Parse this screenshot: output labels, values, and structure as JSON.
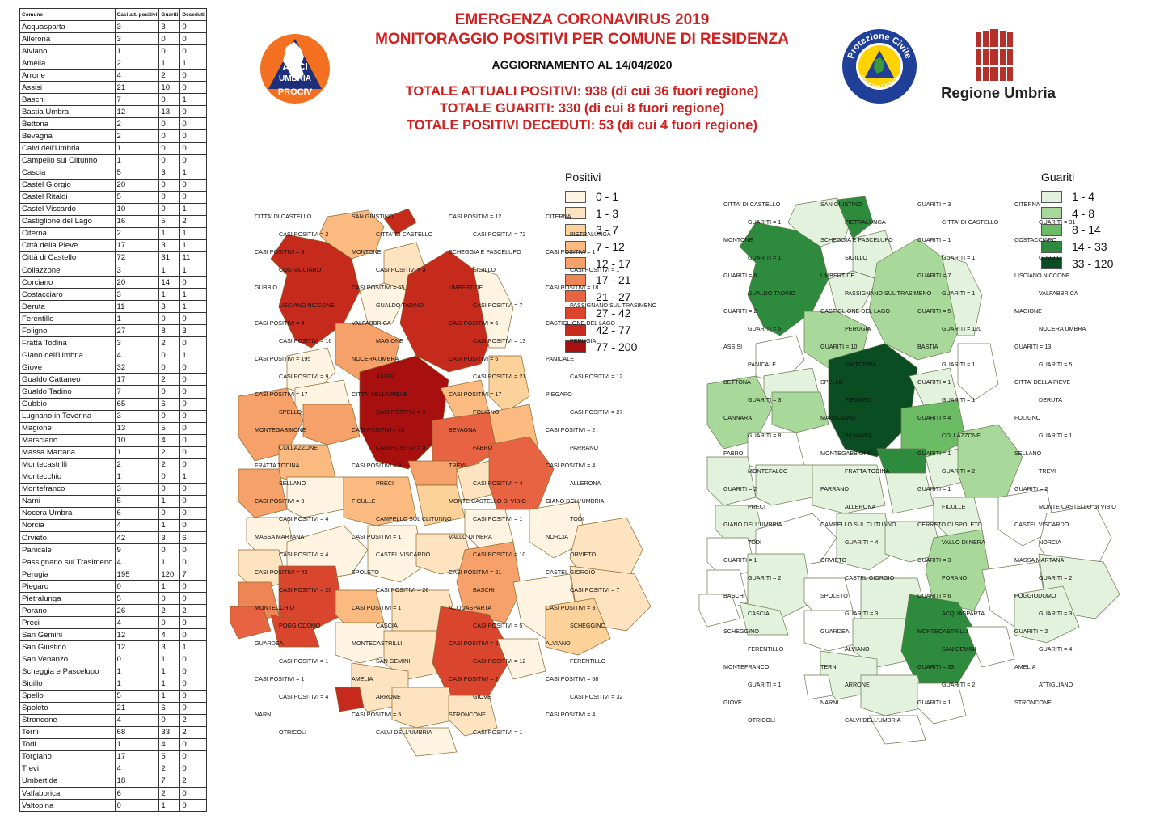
{
  "header": {
    "title_line1": "EMERGENZA CORONAVIRUS 2019",
    "title_line2": "MONITORAGGIO POSITIVI PER COMUNE DI RESIDENZA",
    "update": "AGGIORNAMENTO AL 14/04/2020",
    "total_positives": "TOTALE ATTUALI POSITIVI: 938 (di cui 36 fuori regione)",
    "total_recovered": "TOTALE GUARITI: 330 (di cui 8 fuori regione)",
    "total_deceased": "TOTALE POSITIVI DECEDUTI: 53 (di cui 4 fuori regione)"
  },
  "logos": {
    "anci_line1": "ANCI",
    "anci_line2": "UMBRIA",
    "anci_line3": "PROCIV",
    "pc_top": "Protezione Civile",
    "pc_bottom": "Regione Umbria",
    "regione": "Regione Umbria"
  },
  "table": {
    "headers": [
      "Comune",
      "Casi att. positivi",
      "Guariti",
      "Deceduti"
    ],
    "rows": [
      [
        "Acquasparta",
        "3",
        "3",
        "0"
      ],
      [
        "Allerona",
        "3",
        "0",
        "0"
      ],
      [
        "Alviano",
        "1",
        "0",
        "0"
      ],
      [
        "Amelia",
        "2",
        "1",
        "1"
      ],
      [
        "Arrone",
        "4",
        "2",
        "0"
      ],
      [
        "Assisi",
        "21",
        "10",
        "0"
      ],
      [
        "Baschi",
        "7",
        "0",
        "1"
      ],
      [
        "Bastia Umbra",
        "12",
        "13",
        "0"
      ],
      [
        "Bettona",
        "2",
        "0",
        "0"
      ],
      [
        "Bevagna",
        "2",
        "0",
        "0"
      ],
      [
        "Calvi dell'Umbria",
        "1",
        "0",
        "0"
      ],
      [
        "Campello sul Clitunno",
        "1",
        "0",
        "0"
      ],
      [
        "Cascia",
        "5",
        "3",
        "1"
      ],
      [
        "Castel Giorgio",
        "20",
        "0",
        "0"
      ],
      [
        "Castel Ritaldi",
        "5",
        "0",
        "0"
      ],
      [
        "Castel Viscardo",
        "10",
        "0",
        "1"
      ],
      [
        "Castiglione del Lago",
        "16",
        "5",
        "2"
      ],
      [
        "Citerna",
        "2",
        "1",
        "1"
      ],
      [
        "Città  della Pieve",
        "17",
        "3",
        "1"
      ],
      [
        "Città  di Castello",
        "72",
        "31",
        "11"
      ],
      [
        "Collazzone",
        "3",
        "1",
        "1"
      ],
      [
        "Corciano",
        "20",
        "14",
        "0"
      ],
      [
        "Costacciaro",
        "3",
        "1",
        "1"
      ],
      [
        "Deruta",
        "11",
        "3",
        "1"
      ],
      [
        "Ferentillo",
        "1",
        "0",
        "0"
      ],
      [
        "Foligno",
        "27",
        "8",
        "3"
      ],
      [
        "Fratta Todina",
        "3",
        "2",
        "0"
      ],
      [
        "Giano dell'Umbria",
        "4",
        "0",
        "1"
      ],
      [
        "Giove",
        "32",
        "0",
        "0"
      ],
      [
        "Gualdo Cattaneo",
        "17",
        "2",
        "0"
      ],
      [
        "Gualdo Tadino",
        "7",
        "0",
        "0"
      ],
      [
        "Gubbio",
        "65",
        "6",
        "0"
      ],
      [
        "Lugnano in Teverina",
        "3",
        "0",
        "0"
      ],
      [
        "Magione",
        "13",
        "5",
        "0"
      ],
      [
        "Marsciano",
        "10",
        "4",
        "0"
      ],
      [
        "Massa Martana",
        "1",
        "2",
        "0"
      ],
      [
        "Montecastrilli",
        "2",
        "2",
        "0"
      ],
      [
        "Montecchio",
        "1",
        "0",
        "1"
      ],
      [
        "Montefranco",
        "3",
        "0",
        "0"
      ],
      [
        "Narni",
        "5",
        "1",
        "0"
      ],
      [
        "Nocera Umbra",
        "6",
        "0",
        "0"
      ],
      [
        "Norcia",
        "4",
        "1",
        "0"
      ],
      [
        "Orvieto",
        "42",
        "3",
        "6"
      ],
      [
        "Panicale",
        "9",
        "0",
        "0"
      ],
      [
        "Passignano sul Trasimeno",
        "4",
        "1",
        "0"
      ],
      [
        "Perugia",
        "195",
        "120",
        "7"
      ],
      [
        "Piegaro",
        "0",
        "1",
        "0"
      ],
      [
        "Pietralunga",
        "5",
        "0",
        "0"
      ],
      [
        "Porano",
        "26",
        "2",
        "2"
      ],
      [
        "Preci",
        "4",
        "0",
        "0"
      ],
      [
        "San Gemini",
        "12",
        "4",
        "0"
      ],
      [
        "San Giustino",
        "12",
        "3",
        "1"
      ],
      [
        "San Venanzo",
        "0",
        "1",
        "0"
      ],
      [
        "Scheggia e Pascelupo",
        "1",
        "1",
        "0"
      ],
      [
        "Sigillo",
        "1",
        "1",
        "0"
      ],
      [
        "Spello",
        "5",
        "1",
        "0"
      ],
      [
        "Spoleto",
        "21",
        "6",
        "0"
      ],
      [
        "Stroncone",
        "4",
        "0",
        "2"
      ],
      [
        "Terni",
        "68",
        "33",
        "2"
      ],
      [
        "Todi",
        "1",
        "4",
        "0"
      ],
      [
        "Torgiano",
        "17",
        "5",
        "0"
      ],
      [
        "Trevi",
        "4",
        "2",
        "0"
      ],
      [
        "Umbertide",
        "18",
        "7",
        "2"
      ],
      [
        "Valfabbrica",
        "6",
        "2",
        "0"
      ],
      [
        "Valtopina",
        "0",
        "1",
        "0"
      ]
    ]
  },
  "legend_positivi": {
    "title": "Positivi",
    "items": [
      {
        "label": "0 - 1",
        "color": "#fff3e2"
      },
      {
        "label": "1 - 3",
        "color": "#fde3c0"
      },
      {
        "label": "3 - 7",
        "color": "#fdd19a"
      },
      {
        "label": "7 - 12",
        "color": "#fbbb80"
      },
      {
        "label": "12 - 17",
        "color": "#f5a169"
      },
      {
        "label": "17 - 21",
        "color": "#ef8454"
      },
      {
        "label": "21 - 27",
        "color": "#e76342"
      },
      {
        "label": "27 - 42",
        "color": "#d9452d"
      },
      {
        "label": "42 - 77",
        "color": "#c52a1c"
      },
      {
        "label": "77 - 200",
        "color": "#a80f0f"
      }
    ]
  },
  "legend_guariti": {
    "title": "Guariti",
    "items": [
      {
        "label": "1 - 4",
        "color": "#e2f2dc"
      },
      {
        "label": "4 - 8",
        "color": "#a8d99a"
      },
      {
        "label": "8 - 14",
        "color": "#6cbc66"
      },
      {
        "label": "14 - 33",
        "color": "#2e8b3e"
      },
      {
        "label": "33 - 120",
        "color": "#0b4d22"
      }
    ]
  },
  "map_positivi_labels": [
    "CITTA' DI CASTELLO",
    "SAN GIUSTINO",
    "CASI POSITIVI = 12",
    "CITERNA",
    "CASI POSITIVI = 2",
    "CITTA' DI CASTELLO",
    "CASI POSITIVI = 72",
    "PIETRALUNGA",
    "CASI POSITIVI = 5",
    "MONTONE",
    "SCHEGGIA E PASCELUPO",
    "CASI POSITIVI = 1",
    "COSTACCIARO",
    "CASI POSITIVI = 3",
    "SIGILLO",
    "CASI POSITIVI = 1",
    "GUBBIO",
    "CASI POSITIVI = 65",
    "UMBERTIDE",
    "CASI POSITIVI = 18",
    "LISCIANO NICCONE",
    "GUALDO TADINO",
    "CASI POSITIVI = 7",
    "PASSIGNANO SUL TRASIMENO",
    "CASI POSITIVI = 4",
    "VALFABBRICA",
    "CASI POSITIVI = 6",
    "CASTIGLIONE DEL LAGO",
    "CASI POSITIVI = 16",
    "MAGIONE",
    "CASI POSITIVI = 13",
    "PERUGIA",
    "CASI POSITIVI = 195",
    "NOCERA UMBRA",
    "CASI POSITIVI = 6",
    "PANICALE",
    "CASI POSITIVI = 9",
    "ASSISI",
    "CASI POSITIVI = 21",
    "CASI POSITIVI = 12",
    "CASI POSITIVI = 17",
    "CITTA' DELLA PIEVE",
    "CASI POSITIVI = 17",
    "PIEGARO",
    "SPELLO",
    "CASI POSITIVI = 5",
    "FOLIGNO",
    "CASI POSITIVI = 27",
    "MONTEGABBIONE",
    "CASI POSITIVI = 10",
    "BEVAGNA",
    "CASI POSITIVI = 2",
    "COLLAZZONE",
    "CASI POSITIVI = 3",
    "FABRO",
    "PARRANO",
    "FRATTA TODINA",
    "CASI POSITIVI = 3",
    "TREVI",
    "CASI POSITIVI = 4",
    "SELLANO",
    "PRECI",
    "CASI POSITIVI = 4",
    "ALLERONA",
    "CASI POSITIVI = 3",
    "FICULLE",
    "MONTE CASTELLO DI VIBIO",
    "GIANO DELL'UMBRIA",
    "CASI POSITIVI = 4",
    "CAMPELLO SUL CLITUNNO",
    "CASI POSITIVI = 1",
    "TODI",
    "MASSA MARTANA",
    "CASI POSITIVI = 1",
    "VALLO DI NERA",
    "NORCIA",
    "CASI POSITIVI = 4",
    "CASTEL VISCARDO",
    "CASI POSITIVI = 10",
    "ORVIETO",
    "CASI POSITIVI = 42",
    "SPOLETO",
    "CASI POSITIVI = 21",
    "CASTEL GIORGIO",
    "CASI POSITIVI = 20",
    "CASI POSITIVI = 26",
    "BASCHI",
    "CASI POSITIVI = 7",
    "MONTECCHIO",
    "CASI POSITIVI = 1",
    "ACQUASPARTA",
    "CASI POSITIVI = 3",
    "POGGIODOMO",
    "CASCIA",
    "CASI POSITIVI = 5",
    "SCHEGGINO",
    "GUARDEA",
    "MONTECASTRILLI",
    "CASI POSITIVI = 2",
    "ALVIANO",
    "CASI POSITIVI = 1",
    "SAN GEMINI",
    "CASI POSITIVI = 12",
    "FERENTILLO",
    "CASI POSITIVI = 1",
    "AMELIA",
    "CASI POSITIVI = 2",
    "CASI POSITIVI = 68",
    "CASI POSITIVI = 4",
    "ARRONE",
    "GIOVE",
    "CASI POSITIVI = 32",
    "NARNI",
    "CASI POSITIVI = 5",
    "STRONCONE",
    "CASI POSITIVI = 4",
    "OTRICOLI",
    "CALVI DELL'UMBRIA",
    "CASI POSITIVI = 1"
  ],
  "map_guariti_labels": [
    "CITTA' DI CASTELLO",
    "SAN GIUSTINO",
    "GUARITI = 3",
    "CITERNA",
    "GUARITI = 1",
    "PIETRALUNGA",
    "CITTA' DI CASTELLO",
    "GUARITI = 31",
    "MONTONE",
    "SCHEGGIA E PASCELUPO",
    "GUARITI = 1",
    "COSTACCIARO",
    "GUARITI = 1",
    "SIGILLO",
    "GUARITI = 1",
    "GUBBIO",
    "GUARITI = 6",
    "UMBERTIDE",
    "GUARITI = 7",
    "LISCIANO NICCONE",
    "GUALDO TADINO",
    "PASSIGNANO SUL TRASIMENO",
    "GUARITI = 1",
    "VALFABBRICA",
    "GUARITI = 2",
    "CASTIGLIONE DEL LAGO",
    "GUARITI = 5",
    "MAGIONE",
    "GUARITI = 5",
    "PERUGIA",
    "GUARITI = 120",
    "NOCERA UMBRA",
    "ASSISI",
    "GUARITI = 10",
    "BASTIA",
    "GUARITI = 13",
    "PANICALE",
    "VALTOPINA",
    "GUARITI = 1",
    "GUARITI = 5",
    "BETTONA",
    "SPELLO",
    "GUARITI = 1",
    "CITTA' DELLA PIEVE",
    "GUARITI = 3",
    "PIEGARO",
    "GUARITI = 1",
    "DERUTA",
    "CANNARA",
    "MARSCIANO",
    "GUARITI = 4",
    "FOLIGNO",
    "GUARITI = 8",
    "BEVAGNA",
    "COLLAZZONE",
    "GUARITI = 1",
    "FABRO",
    "MONTEGABBIONE",
    "GUARITI = 1",
    "SELLANO",
    "MONTEFALCO",
    "FRATTA TODINA",
    "GUARITI = 2",
    "TREVI",
    "GUARITI = 2",
    "PARRANO",
    "GUARITI = 1",
    "GUARITI = 2",
    "PRECI",
    "ALLERONA",
    "FICULLE",
    "MONTE CASTELLO DI VIBIO",
    "GIANO DELL'UMBRIA",
    "CAMPELLO SUL CLITUNNO",
    "CERRETO DI SPOLETO",
    "CASTEL VISCARDO",
    "TODI",
    "GUARITI = 4",
    "VALLO DI NERA",
    "NORCIA",
    "GUARITI = 1",
    "ORVIETO",
    "GUARITI = 3",
    "MASSA MARTANA",
    "GUARITI = 2",
    "CASTEL GIORGIO",
    "PORANO",
    "GUARITI = 2",
    "BASCHI",
    "SPOLETO",
    "GUARITI = 6",
    "POGGIODOMO",
    "CASCIA",
    "GUARITI = 3",
    "ACQUASPARTA",
    "GUARITI = 3",
    "SCHEGGINO",
    "GUARDEA",
    "MONTECASTRILLI",
    "GUARITI = 2",
    "FERENTILLO",
    "ALVIANO",
    "SAN GEMINI",
    "GUARITI = 4",
    "MONTEFRANCO",
    "TERNI",
    "GUARITI = 33",
    "AMELIA",
    "GUARITI = 1",
    "ARRONE",
    "GUARITI = 2",
    "ATTIGLIANO",
    "GIOVE",
    "NARNI",
    "GUARITI = 1",
    "STRONCONE",
    "OTRICOLI",
    "CALVI DELL'UMBRIA"
  ]
}
